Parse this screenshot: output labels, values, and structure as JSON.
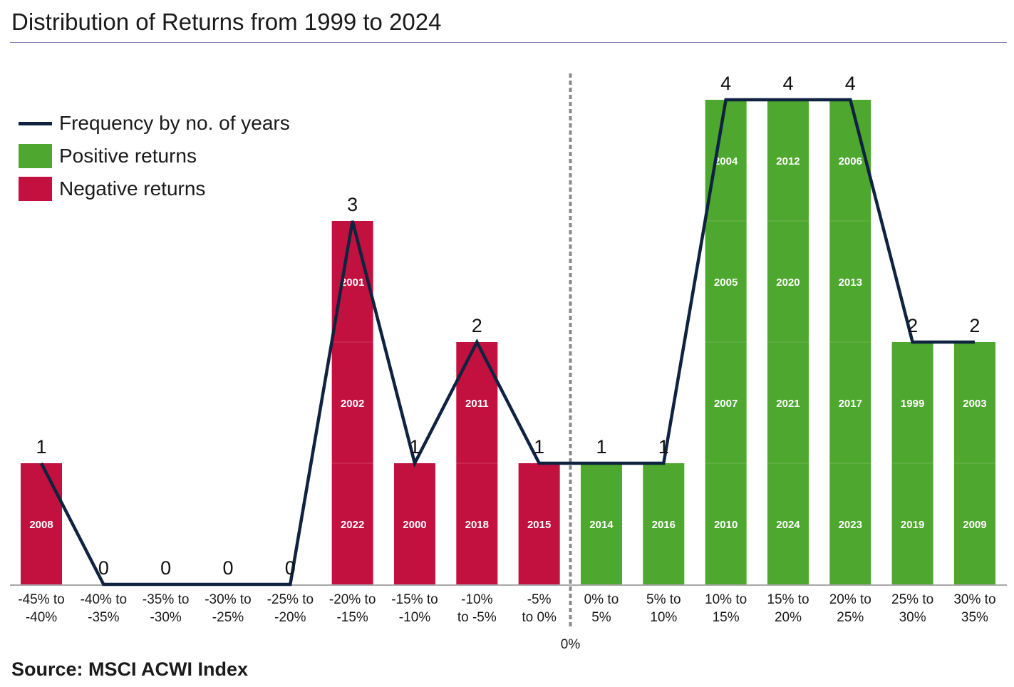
{
  "title": "Distribution of Returns from 1999 to 2024",
  "source": "Source: MSCI ACWI Index",
  "colors": {
    "positive": "#4ea72e",
    "negative": "#c2113f",
    "line": "#0f2340",
    "divider": "#8a8a8a",
    "title_rule": "#7d6fa8"
  },
  "legend": [
    {
      "label": "Frequency by no. of years",
      "kind": "line"
    },
    {
      "label": "Positive returns",
      "kind": "positive"
    },
    {
      "label": "Negative returns",
      "kind": "negative"
    }
  ],
  "chart_data": {
    "type": "bar",
    "title": "Distribution of Returns from 1999 to 2024",
    "xlabel": "",
    "ylabel": "",
    "ylim": [
      0,
      4
    ],
    "grid": false,
    "legend_position": "top-left",
    "divider_label": "0%",
    "categories": [
      [
        "-45% to",
        "-40%"
      ],
      [
        "-40% to",
        "-35%"
      ],
      [
        "-35% to",
        "-30%"
      ],
      [
        "-30% to",
        "-25%"
      ],
      [
        "-25% to",
        "-20%"
      ],
      [
        "-20% to",
        "-15%"
      ],
      [
        "-15% to",
        "-10%"
      ],
      [
        "-10%",
        "to -5%"
      ],
      [
        "-5%",
        "to 0%"
      ],
      [
        "0% to",
        "5%"
      ],
      [
        "5% to",
        "10%"
      ],
      [
        "10% to",
        "15%"
      ],
      [
        "15% to",
        "20%"
      ],
      [
        "20% to",
        "25%"
      ],
      [
        "25% to",
        "30%"
      ],
      [
        "30% to",
        "35%"
      ]
    ],
    "values": [
      1,
      0,
      0,
      0,
      0,
      3,
      1,
      2,
      1,
      1,
      1,
      4,
      4,
      4,
      2,
      2
    ],
    "sign": [
      "negative",
      "negative",
      "negative",
      "negative",
      "negative",
      "negative",
      "negative",
      "negative",
      "negative",
      "positive",
      "positive",
      "positive",
      "positive",
      "positive",
      "positive",
      "positive"
    ],
    "years": [
      [
        "2008"
      ],
      [],
      [],
      [],
      [],
      [
        "2022",
        "2002",
        "2001"
      ],
      [
        "2000"
      ],
      [
        "2018",
        "2011"
      ],
      [
        "2015"
      ],
      [
        "2014"
      ],
      [
        "2016"
      ],
      [
        "2010",
        "2007",
        "2005",
        "2004"
      ],
      [
        "2024",
        "2021",
        "2020",
        "2012"
      ],
      [
        "2023",
        "2017",
        "2013",
        "2006"
      ],
      [
        "2019",
        "1999"
      ],
      [
        "2009",
        "2003"
      ]
    ],
    "series": [
      {
        "name": "Frequency by no. of years",
        "values": [
          1,
          0,
          0,
          0,
          0,
          3,
          1,
          2,
          1,
          1,
          1,
          4,
          4,
          4,
          2,
          2
        ]
      }
    ]
  }
}
